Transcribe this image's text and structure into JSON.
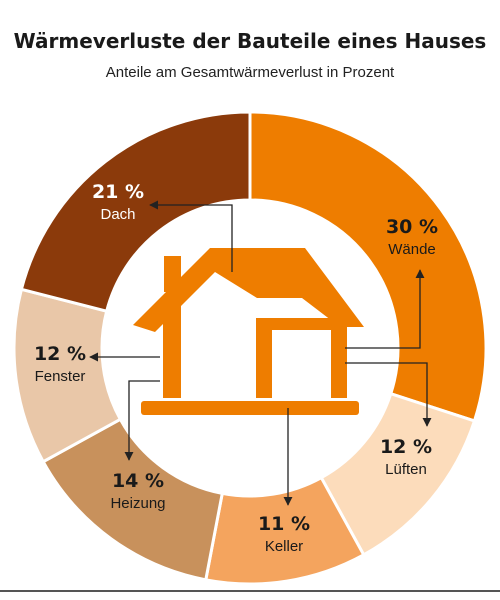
{
  "header": {
    "title": "Wärmeverluste der Bauteile eines Hauses",
    "subtitle": "Anteile am Gesamtwärmeverlust in Prozent"
  },
  "chart_data": {
    "type": "pie",
    "variant": "donut",
    "unit": "%",
    "title": "Wärmeverluste der Bauteile eines Hauses",
    "subtitle": "Anteile am Gesamtwärmeverlust in Prozent",
    "legend": "none",
    "slices": [
      {
        "label": "Wände",
        "value": 30,
        "value_label": "30 %",
        "color": "#ee7d00",
        "text_color": "#1a1a1a"
      },
      {
        "label": "Lüften",
        "value": 12,
        "value_label": "12 %",
        "color": "#fcdcbb",
        "text_color": "#1a1a1a"
      },
      {
        "label": "Keller",
        "value": 11,
        "value_label": "11 %",
        "color": "#f4a45e",
        "text_color": "#1a1a1a"
      },
      {
        "label": "Heizung",
        "value": 14,
        "value_label": "14 %",
        "color": "#c8915c",
        "text_color": "#1a1a1a"
      },
      {
        "label": "Fenster",
        "value": 12,
        "value_label": "12 %",
        "color": "#e9c7a8",
        "text_color": "#1a1a1a"
      },
      {
        "label": "Dach",
        "value": 21,
        "value_label": "21 %",
        "color": "#8b3a0b",
        "text_color": "#ffffff"
      }
    ]
  },
  "colors": {
    "house": "#ee7d00",
    "leader_lines": "#222222",
    "bottom_rule": "#555555"
  }
}
